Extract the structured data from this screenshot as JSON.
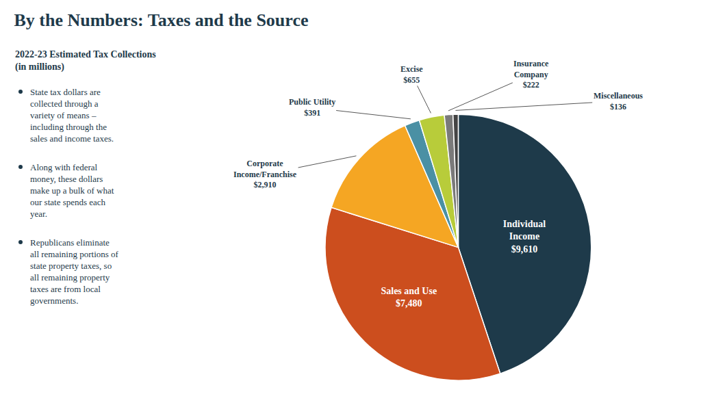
{
  "chart_data": {
    "type": "pie",
    "title": "By the Numbers: Taxes and the Source",
    "subtitle": "2022-23 Estimated Tax Collections\n(in millions)",
    "annotations": [
      "State tax dollars are\ncollected through a\nvariety of means –\nincluding through the\nsales and income taxes.",
      "Along with federal\nmoney, these dollars\nmake up a bulk of what\nour state spends each\nyear.",
      "Republicans eliminate\nall remaining portions of\nstate property taxes, so\nall remaining property\ntaxes are from local\ngovernments."
    ],
    "categories": [
      "Individual\nIncome",
      "Sales and Use",
      "Corporate\nIncome/Franchise",
      "Public Utility",
      "Excise",
      "Insurance\nCompany",
      "Miscellaneous"
    ],
    "values": [
      9610,
      7480,
      2910,
      391,
      655,
      222,
      136
    ],
    "value_labels": [
      "$9,610",
      "$7,480",
      "$2,910",
      "$391",
      "$655",
      "$222",
      "$136"
    ],
    "colors": [
      "#1e3a4a",
      "#cc4e1e",
      "#f5a623",
      "#4a90a4",
      "#b8cc3a",
      "#7a7a7a",
      "#444444"
    ],
    "data_labels": true
  }
}
